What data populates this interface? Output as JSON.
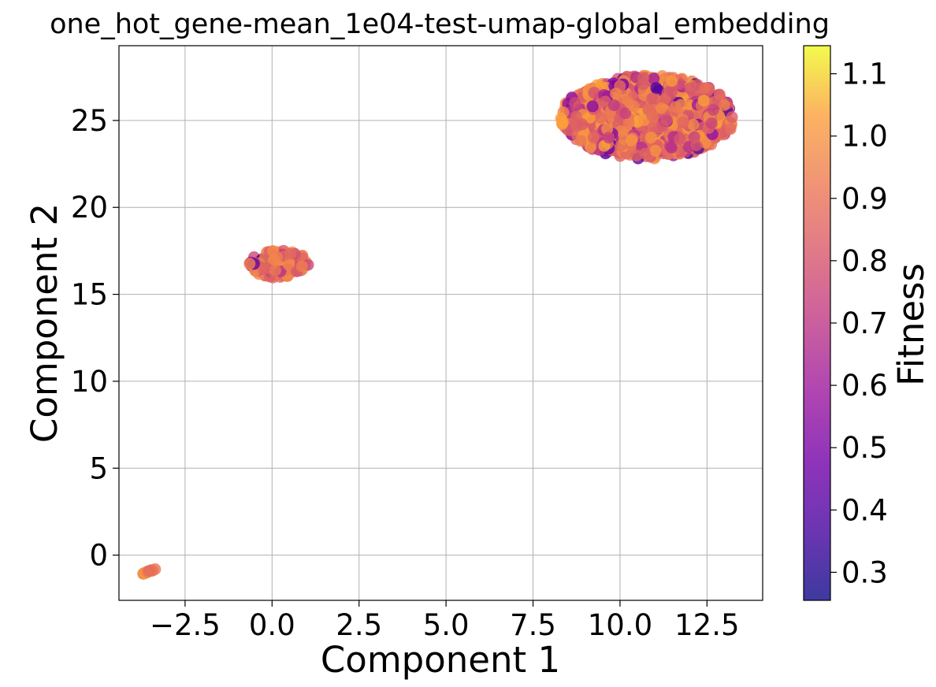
{
  "chart_data": {
    "type": "scatter",
    "title": "one_hot_gene-mean_1e04-test-umap-global_embedding",
    "xlabel": "Component 1",
    "ylabel": "Component 2",
    "xlim": [
      -4.4,
      14.1
    ],
    "ylim": [
      -2.6,
      29.3
    ],
    "xticks": [
      -2.5,
      0.0,
      2.5,
      5.0,
      7.5,
      10.0,
      12.5
    ],
    "xtick_labels": [
      "−2.5",
      "0.0",
      "2.5",
      "5.0",
      "7.5",
      "10.0",
      "12.5"
    ],
    "yticks": [
      0,
      5,
      10,
      15,
      20,
      25
    ],
    "ytick_labels": [
      "0",
      "5",
      "10",
      "15",
      "20",
      "25"
    ],
    "grid": true,
    "colorbar": {
      "label": "Fitness",
      "colormap": "plasma",
      "range": [
        0.255,
        1.145
      ],
      "ticks": [
        0.3,
        0.4,
        0.5,
        0.6,
        0.7,
        0.8,
        0.9,
        1.0,
        1.1
      ],
      "tick_labels": [
        "0.3",
        "0.4",
        "0.5",
        "0.6",
        "0.7",
        "0.8",
        "0.9",
        "1.0",
        "1.1"
      ]
    },
    "clusters": [
      {
        "center": [
          -3.5,
          -0.95
        ],
        "shape": "line",
        "x_range": [
          -3.75,
          -3.35
        ],
        "y_range": [
          -1.1,
          -0.8
        ],
        "n_points": 12,
        "mean_fitness": 0.98
      },
      {
        "center": [
          0.2,
          16.75
        ],
        "shape": "ellipse",
        "x_spread": 0.85,
        "y_spread": 0.8,
        "n_points": 140,
        "mean_fitness": 0.88
      },
      {
        "center": [
          10.8,
          25.2
        ],
        "shape": "ellipse",
        "x_spread": 2.5,
        "y_spread": 2.4,
        "n_points": 950,
        "mean_fitness": 0.92
      }
    ]
  }
}
